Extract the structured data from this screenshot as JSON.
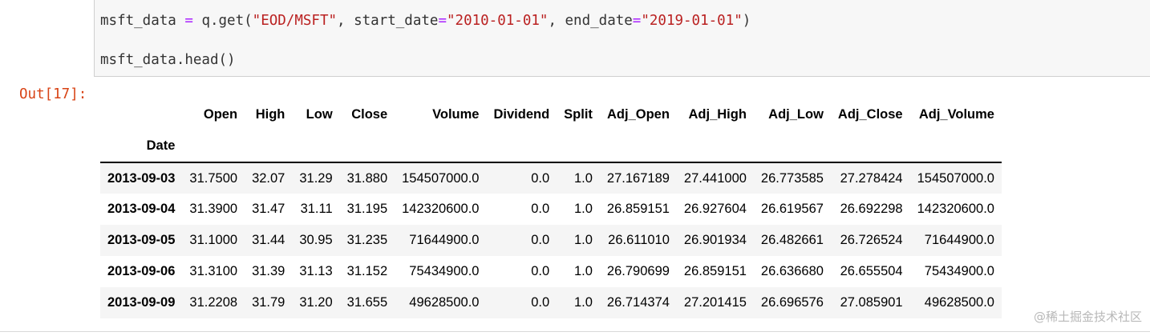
{
  "input_cell": {
    "line1": {
      "var": "msft_data",
      "eq": " = ",
      "call": "q.get(",
      "arg1": "\"EOD/MSFT\"",
      "sep1": ", start_date",
      "eq2": "=",
      "arg2": "\"2010-01-01\"",
      "sep2": ", end_date",
      "eq3": "=",
      "arg3": "\"2019-01-01\"",
      "close": ")"
    },
    "line2": "msft_data.head()"
  },
  "output_prompt": "Out[17]:",
  "dataframe": {
    "columns": [
      "Open",
      "High",
      "Low",
      "Close",
      "Volume",
      "Dividend",
      "Split",
      "Adj_Open",
      "Adj_High",
      "Adj_Low",
      "Adj_Close",
      "Adj_Volume"
    ],
    "index_name": "Date",
    "rows": [
      {
        "index": "2013-09-03",
        "values": [
          "31.7500",
          "32.07",
          "31.29",
          "31.880",
          "154507000.0",
          "0.0",
          "1.0",
          "27.167189",
          "27.441000",
          "26.773585",
          "27.278424",
          "154507000.0"
        ]
      },
      {
        "index": "2013-09-04",
        "values": [
          "31.3900",
          "31.47",
          "31.11",
          "31.195",
          "142320600.0",
          "0.0",
          "1.0",
          "26.859151",
          "26.927604",
          "26.619567",
          "26.692298",
          "142320600.0"
        ]
      },
      {
        "index": "2013-09-05",
        "values": [
          "31.1000",
          "31.44",
          "30.95",
          "31.235",
          "71644900.0",
          "0.0",
          "1.0",
          "26.611010",
          "26.901934",
          "26.482661",
          "26.726524",
          "71644900.0"
        ]
      },
      {
        "index": "2013-09-06",
        "values": [
          "31.3100",
          "31.39",
          "31.13",
          "31.152",
          "75434900.0",
          "0.0",
          "1.0",
          "26.790699",
          "26.859151",
          "26.636680",
          "26.655504",
          "75434900.0"
        ]
      },
      {
        "index": "2013-09-09",
        "values": [
          "31.2208",
          "31.79",
          "31.20",
          "31.655",
          "49628500.0",
          "0.0",
          "1.0",
          "26.714374",
          "27.201415",
          "26.696576",
          "27.085901",
          "49628500.0"
        ]
      }
    ]
  },
  "watermark": "@稀土掘金技术社区",
  "colors": {
    "keyword_operator": "#aa22ff",
    "string": "#ba2121",
    "out_prompt": "#d84315",
    "input_background": "#f7f7f7",
    "striped_row": "#f5f5f5"
  }
}
